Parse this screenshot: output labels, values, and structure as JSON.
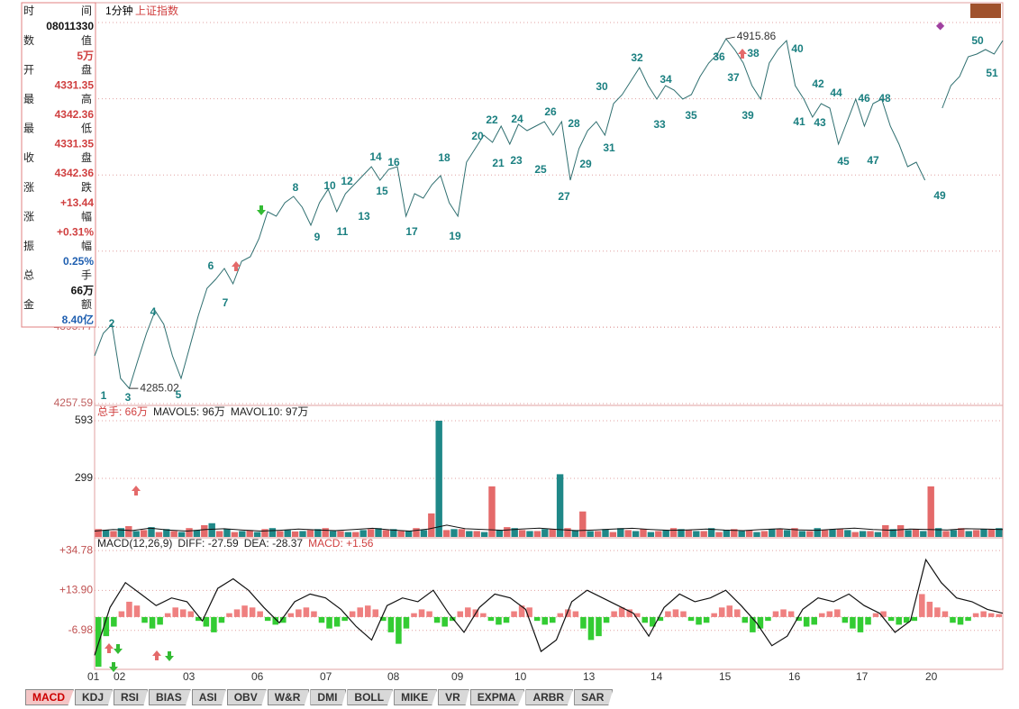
{
  "header": {
    "period": "1分钟",
    "index": "上证指数"
  },
  "info_box": {
    "rows": [
      {
        "label": "时间",
        "value": "08011330"
      },
      {
        "label": "数值",
        "value": "5万"
      },
      {
        "label": "开盘",
        "value": "4331.35"
      },
      {
        "label": "最高",
        "value": "4342.36"
      },
      {
        "label": "最低",
        "value": "4331.35"
      },
      {
        "label": "收盘",
        "value": "4342.36"
      },
      {
        "label": "涨跌",
        "value": "+13.44"
      },
      {
        "label": "涨幅",
        "value": "+0.31%"
      },
      {
        "label": "振幅",
        "value": "0.25%"
      },
      {
        "label": "总手",
        "value": "66万"
      },
      {
        "label": "金额",
        "value": "8.40亿"
      }
    ]
  },
  "chart_data": [
    {
      "type": "line",
      "color": "#2f6f70",
      "ylim": [
        4257.59,
        4948.49
      ],
      "yticks": [
        4395.77,
        4257.59
      ],
      "values": [
        4343.8,
        4384.4,
        4400.7,
        4303.1,
        4285.02,
        4335.6,
        4384.4,
        4425.0,
        4400.7,
        4343.8,
        4303.1,
        4360.0,
        4416.9,
        4465.7,
        4481.9,
        4501.4,
        4473.8,
        4514.4,
        4522.6,
        4555.1,
        4603.9,
        4595.7,
        4620.1,
        4631.5,
        4612.0,
        4579.5,
        4620.1,
        4644.5,
        4603.9,
        4636.4,
        4652.6,
        4668.9,
        4685.1,
        4660.7,
        4680.3,
        4685.1,
        4595.7,
        4636.4,
        4628.2,
        4652.6,
        4668.9,
        4620.1,
        4595.7,
        4693.3,
        4717.6,
        4742.0,
        4729.0,
        4758.3,
        4725.8,
        4761.5,
        4750.2,
        4758.3,
        4766.4,
        4742.0,
        4766.4,
        4660.7,
        4717.6,
        4750.2,
        4766.4,
        4742.0,
        4798.9,
        4815.2,
        4839.6,
        4863.9,
        4831.4,
        4807.1,
        4831.4,
        4823.3,
        4807.1,
        4815.2,
        4847.7,
        4872.1,
        4888.3,
        4915.86,
        4896.5,
        4872.1,
        4831.4,
        4807.1,
        4872.1,
        4896.5,
        4912.7,
        4831.4,
        4807.1,
        4774.5,
        4798.9,
        4790.8,
        4725.8,
        4766.4,
        4807.1,
        4758.3,
        4798.9,
        4807.1,
        4758.3,
        4725.8,
        4685.1,
        4693.3,
        4660.7,
        null,
        4790.8,
        4831.4,
        4847.7,
        4883.5,
        4888.3,
        4896.5,
        4888.3,
        4912.7
      ],
      "high_label": 4915.86,
      "low_label": 4285.02,
      "wave_labels": [
        "1",
        "2",
        "3",
        "4",
        "5",
        "6",
        "7",
        "8",
        "9",
        "10",
        "11",
        "12",
        "13",
        "14",
        "15",
        "16",
        "17",
        "18",
        "19",
        "20",
        "21",
        "22",
        "23",
        "24",
        "25",
        "26",
        "27",
        "28",
        "29",
        "30",
        "31",
        "32",
        "33",
        "34",
        "35",
        "36",
        "37",
        "38",
        "39",
        "40",
        "41",
        "42",
        "43",
        "44",
        "45",
        "46",
        "47",
        "48",
        "49",
        "50",
        "51"
      ],
      "x_labels": [
        "01",
        "02",
        "03",
        "06",
        "07",
        "08",
        "09",
        "10",
        "13",
        "14",
        "15",
        "16",
        "17",
        "20"
      ]
    },
    {
      "type": "bar",
      "title_parts": [
        "总手: 66万",
        "MAVOL5: 96万",
        "MAVOL10: 97万"
      ],
      "ylim": [
        0,
        662
      ],
      "yticks": [
        593,
        299
      ],
      "series": [
        {
          "color": "#e46a6a",
          "values": [
            40,
            30,
            55,
            35,
            25,
            30,
            45,
            60,
            30,
            25,
            35,
            40,
            30,
            28,
            35,
            45,
            30,
            25,
            40,
            35,
            30,
            45,
            120,
            35,
            40,
            30,
            258,
            50,
            35,
            30,
            40,
            45,
            130,
            30,
            25,
            35,
            40,
            30,
            45,
            35,
            30,
            25,
            40,
            35,
            30,
            40,
            45,
            30,
            35,
            40,
            25,
            30,
            60,
            60,
            40,
            258,
            30,
            45,
            35,
            40
          ]
        },
        {
          "color": "#1f8888",
          "values": [
            35,
            45,
            30,
            50,
            40,
            25,
            35,
            70,
            40,
            30,
            25,
            45,
            35,
            30,
            40,
            30,
            25,
            35,
            45,
            40,
            30,
            35,
            593,
            40,
            30,
            25,
            35,
            45,
            30,
            40,
            320,
            35,
            30,
            40,
            45,
            30,
            25,
            35,
            40,
            30,
            45,
            35,
            30,
            25,
            40,
            35,
            30,
            45,
            40,
            35,
            30,
            25,
            40,
            35,
            30,
            45,
            35,
            30,
            40,
            45
          ]
        }
      ],
      "mavol": {
        "color": "#111111",
        "values": [
          30,
          38,
          32,
          45,
          35,
          30,
          38,
          42,
          35,
          30,
          34,
          40,
          36,
          32,
          38,
          44,
          36,
          30,
          40,
          60,
          42,
          38,
          34,
          40,
          45,
          38,
          32,
          36,
          40,
          44,
          38,
          34,
          36,
          40,
          35,
          32,
          38,
          42,
          36,
          34,
          40,
          45,
          38,
          34,
          40,
          38,
          36,
          42,
          40,
          38
        ]
      }
    },
    {
      "type": "macd",
      "title_parts": [
        "MACD(12,26,9)",
        "DIFF: -27.59",
        "DEA: -28.37",
        "MACD: +1.56"
      ],
      "ylim": [
        -26.9,
        40.95
      ],
      "yticks": [
        {
          "value": 34.78,
          "label": "+34.78"
        },
        {
          "value": 13.9,
          "label": "+13.90"
        },
        {
          "value": -6.98,
          "label": "-6.98"
        }
      ],
      "histogram": {
        "pos_color": "#ef8080",
        "neg_color": "#33cc33",
        "values": [
          -26,
          -10,
          -5,
          3,
          8,
          6,
          -3,
          -6,
          -4,
          2,
          5,
          4,
          3,
          -2,
          -5,
          -8,
          -3,
          2,
          4,
          6,
          5,
          3,
          -2,
          -4,
          -3,
          2,
          4,
          5,
          3,
          -3,
          -6,
          -5,
          -2,
          3,
          5,
          6,
          4,
          -2,
          -8,
          -14,
          -6,
          2,
          4,
          3,
          -3,
          -5,
          -2,
          3,
          5,
          4,
          2,
          -2,
          -4,
          -3,
          3,
          6,
          5,
          -2,
          -4,
          -3,
          2,
          4,
          3,
          -6,
          -12,
          -10,
          -3,
          3,
          5,
          4,
          2,
          -3,
          -5,
          -2,
          3,
          4,
          3,
          -2,
          -4,
          -3,
          2,
          5,
          6,
          4,
          -3,
          -8,
          -6,
          -2,
          3,
          4,
          3,
          -2,
          -5,
          -4,
          2,
          3,
          4,
          -3,
          -6,
          -8,
          -4,
          2,
          3,
          -2,
          -4,
          -3,
          -2,
          12,
          8,
          5,
          3,
          -3,
          -4,
          -2,
          2,
          3,
          2,
          1.56
        ]
      },
      "diff": {
        "color": "#111111",
        "values": [
          -20,
          5,
          18,
          12,
          6,
          10,
          8,
          -2,
          15,
          20,
          14,
          5,
          -3,
          8,
          12,
          10,
          4,
          -5,
          -12,
          6,
          10,
          8,
          14,
          2,
          -8,
          5,
          12,
          10,
          4,
          -18,
          -12,
          8,
          14,
          10,
          6,
          2,
          -10,
          5,
          12,
          8,
          10,
          14,
          6,
          -3,
          -15,
          -10,
          4,
          10,
          8,
          12,
          6,
          2,
          -8,
          -2,
          30,
          18,
          10,
          8,
          4,
          2
        ]
      }
    }
  ],
  "tabs": [
    "MACD",
    "KDJ",
    "RSI",
    "BIAS",
    "ASI",
    "OBV",
    "W&R",
    "DMI",
    "BOLL",
    "MIKE",
    "VR",
    "EXPMA",
    "ARBR",
    "SAR"
  ]
}
